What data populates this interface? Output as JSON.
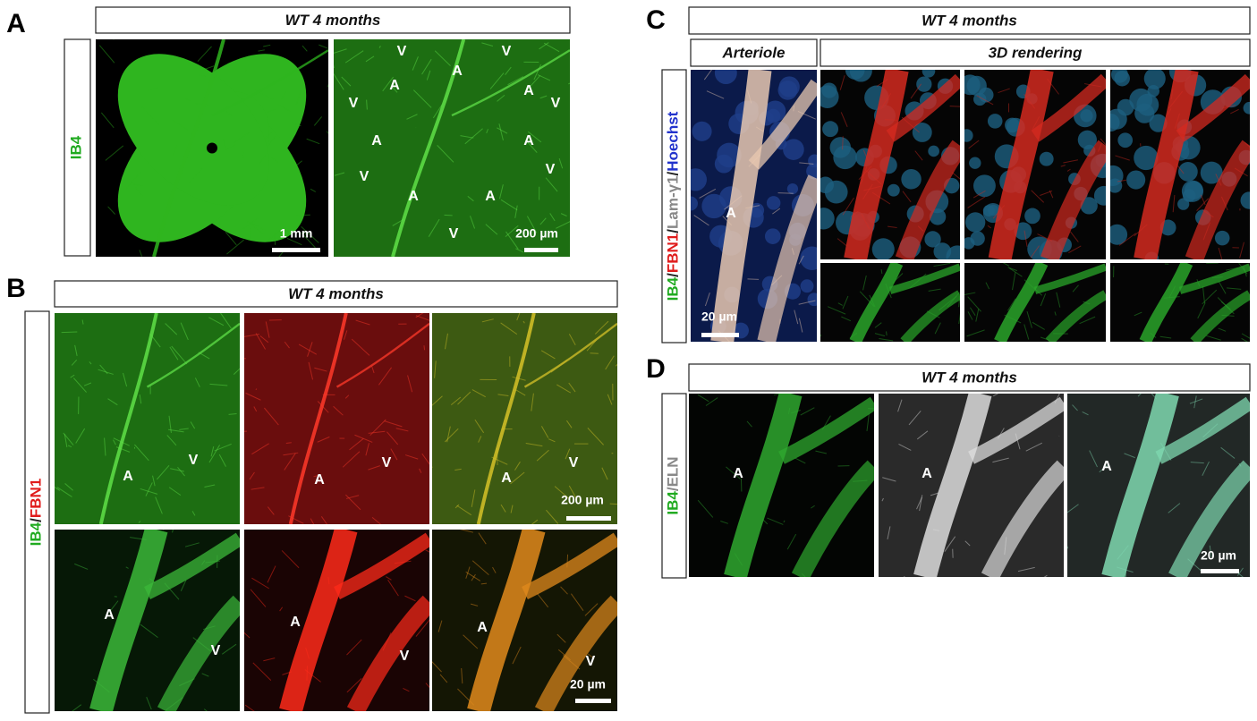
{
  "panels": [
    {
      "letter": "A",
      "header": "WT 4 months",
      "side_label": [
        {
          "text": "IB4",
          "color": "#1faa1f"
        }
      ],
      "labels": [
        "V",
        "V",
        "A",
        "A",
        "A",
        "V",
        "V",
        "A",
        "A",
        "V",
        "V",
        "A",
        "A",
        "V"
      ],
      "scale_bars": [
        "1 mm",
        "200 µm"
      ]
    },
    {
      "letter": "B",
      "header": "WT 4 months",
      "side_label": [
        {
          "text": "IB4",
          "color": "#1faa1f"
        },
        {
          "text": "/",
          "color": "#222222"
        },
        {
          "text": "FBN1",
          "color": "#e01b1b"
        }
      ],
      "labels": [
        "A",
        "V",
        "A",
        "V",
        "A",
        "V",
        "A",
        "V",
        "A",
        "V",
        "A",
        "V"
      ],
      "scale_bars": [
        "200 µm",
        "20 µm"
      ]
    },
    {
      "letter": "C",
      "header": "WT 4 months",
      "subheaders": [
        "Arteriole",
        "3D rendering"
      ],
      "side_label": [
        {
          "text": "IB4",
          "color": "#1faa1f"
        },
        {
          "text": "/",
          "color": "#222222"
        },
        {
          "text": "FBN1",
          "color": "#e01b1b"
        },
        {
          "text": "/",
          "color": "#222222"
        },
        {
          "text": "Lam-γ1",
          "color": "#888888"
        },
        {
          "text": "/",
          "color": "#222222"
        },
        {
          "text": "Hoechst",
          "color": "#2233cc"
        }
      ],
      "labels": [
        "A"
      ],
      "scale_bars": [
        "20 µm"
      ]
    },
    {
      "letter": "D",
      "header": "WT 4 months",
      "side_label": [
        {
          "text": "IB4",
          "color": "#1faa1f"
        },
        {
          "text": "/ELN",
          "color": "#888888"
        }
      ],
      "labels": [
        "A",
        "A",
        "A"
      ],
      "scale_bars": [
        "20 µm"
      ]
    }
  ]
}
